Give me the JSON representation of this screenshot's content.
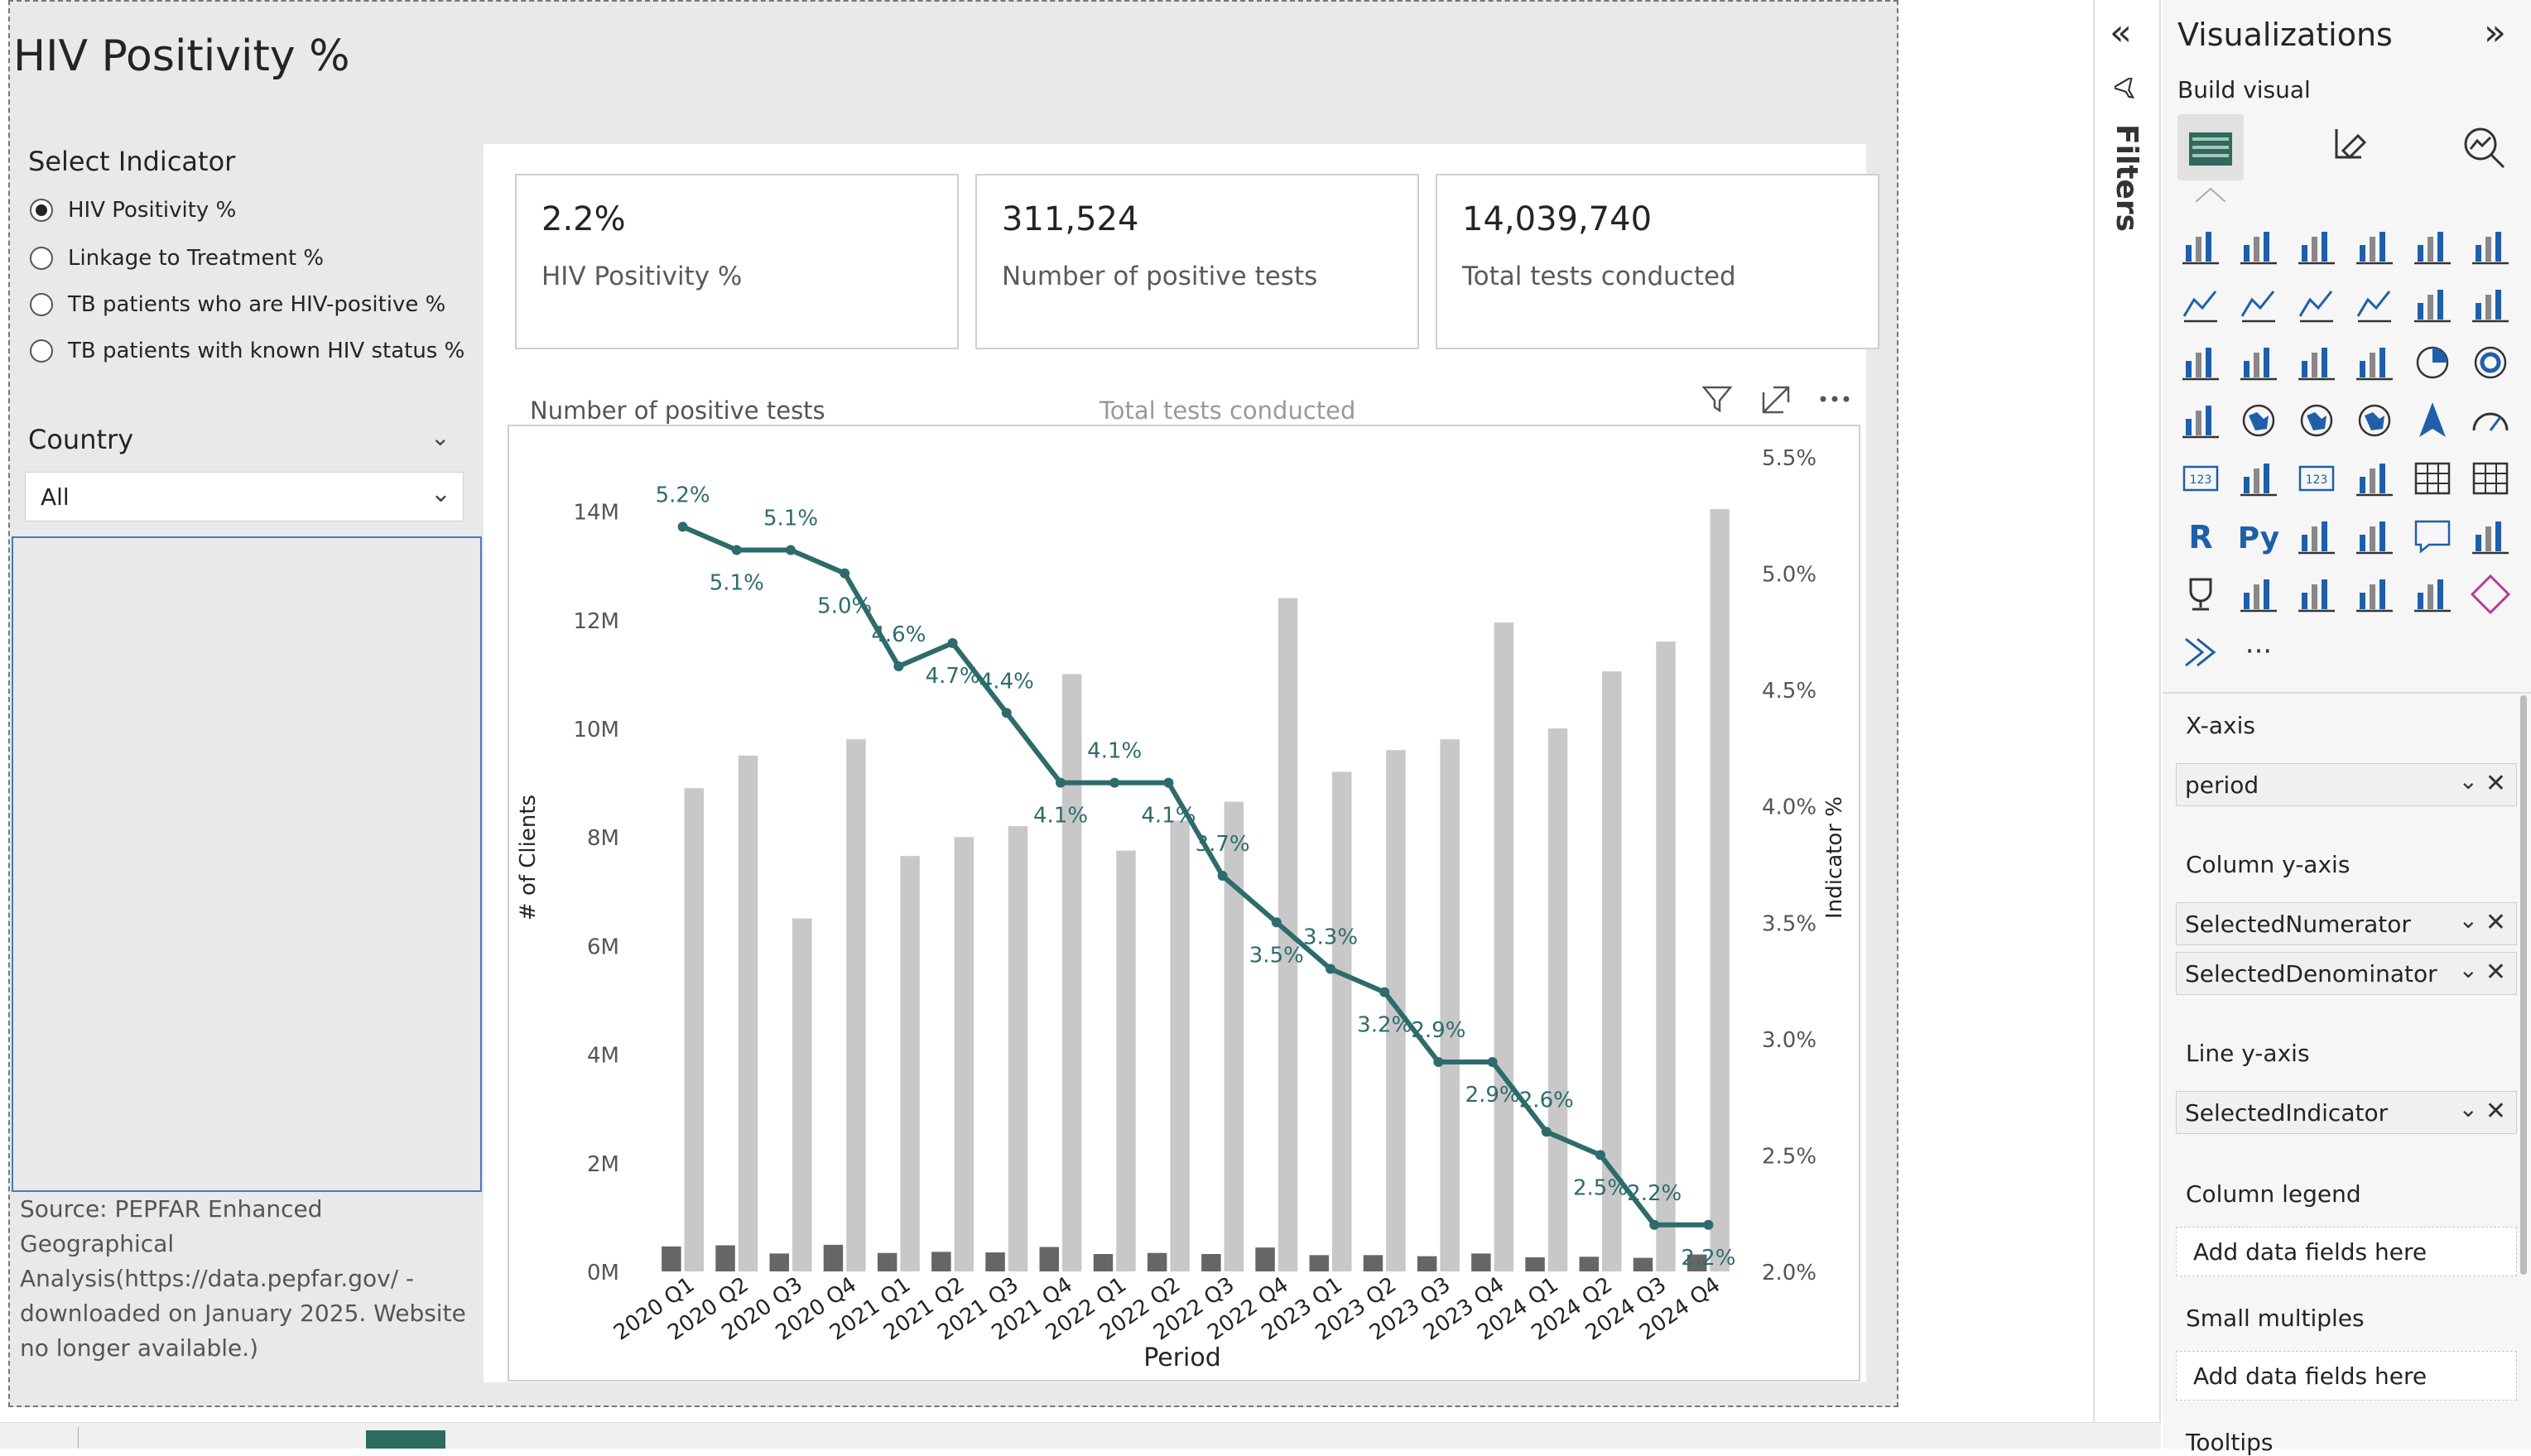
{
  "page_title": "HIV Positivity %",
  "select_indicator": {
    "title": "Select Indicator",
    "options": [
      {
        "label": "HIV Positivity %",
        "selected": true
      },
      {
        "label": "Linkage to Treatment %",
        "selected": false
      },
      {
        "label": "TB patients who are HIV-positive %",
        "selected": false
      },
      {
        "label": "TB patients with known HIV status %",
        "selected": false
      }
    ]
  },
  "country": {
    "label": "Country",
    "value": "All"
  },
  "source_text": "Source: PEPFAR Enhanced Geographical Analysis(https://data.pepfar.gov/ - downloaded on January 2025. Website no longer available.)",
  "cards": [
    {
      "value": "2.2%",
      "label": "HIV Positivity %"
    },
    {
      "value": "311,524",
      "label": "Number of positive tests"
    },
    {
      "value": "14,039,740",
      "label": "Total tests conducted"
    }
  ],
  "chart_data": {
    "type": "bar",
    "legend": [
      "Number of positive tests",
      "Total tests conducted"
    ],
    "legend_position": "top-left",
    "xlabel": "Period",
    "ylabel": "# of Clients",
    "y2label": "Indicator %",
    "categories": [
      "2020 Q1",
      "2020 Q2",
      "2020 Q3",
      "2020 Q4",
      "2021 Q1",
      "2021 Q2",
      "2021 Q3",
      "2021 Q4",
      "2022 Q1",
      "2022 Q2",
      "2022 Q3",
      "2022 Q4",
      "2023 Q1",
      "2023 Q2",
      "2023 Q3",
      "2023 Q4",
      "2024 Q1",
      "2024 Q2",
      "2024 Q3",
      "2024 Q4"
    ],
    "y_ticks": [
      "0M",
      "2M",
      "4M",
      "6M",
      "8M",
      "10M",
      "12M",
      "14M"
    ],
    "ylim": [
      0,
      15000000
    ],
    "y2_ticks": [
      "2.0%",
      "2.5%",
      "3.0%",
      "3.5%",
      "4.0%",
      "4.5%",
      "5.0%",
      "5.5%"
    ],
    "y2lim": [
      2.0,
      5.5
    ],
    "series": [
      {
        "name": "Number of positive tests",
        "color": "#666666",
        "values": [
          460000,
          480000,
          330000,
          490000,
          340000,
          360000,
          350000,
          450000,
          320000,
          340000,
          320000,
          440000,
          300000,
          300000,
          280000,
          330000,
          260000,
          270000,
          250000,
          311524
        ]
      },
      {
        "name": "Total tests conducted",
        "color": "#c8c8c8",
        "values": [
          8900000,
          9500000,
          6500000,
          9800000,
          7650000,
          8000000,
          8200000,
          11000000,
          7750000,
          8300000,
          8650000,
          12400000,
          9200000,
          9600000,
          9800000,
          11950000,
          10000000,
          11050000,
          11600000,
          14039740
        ]
      },
      {
        "name": "HIV Positivity %",
        "color": "#2e6b6b",
        "type": "line",
        "values": [
          5.2,
          5.1,
          5.1,
          5.0,
          4.6,
          4.7,
          4.4,
          4.1,
          4.1,
          4.1,
          3.7,
          3.5,
          3.3,
          3.2,
          2.9,
          2.9,
          2.6,
          2.5,
          2.2,
          2.2
        ]
      }
    ]
  },
  "filters_label": "Filters",
  "viz_pane": {
    "title": "Visualizations",
    "build_visual": "Build visual",
    "wells": [
      {
        "label": "X-axis",
        "fields": [
          "period"
        ]
      },
      {
        "label": "Column y-axis",
        "fields": [
          "SelectedNumerator",
          "SelectedDenominator"
        ]
      },
      {
        "label": "Line y-axis",
        "fields": [
          "SelectedIndicator"
        ]
      },
      {
        "label": "Column legend",
        "add": "Add data fields here"
      },
      {
        "label": "Small multiples",
        "add": "Add data fields here"
      },
      {
        "label": "Tooltips"
      }
    ],
    "icon_names": [
      "stacked-bar",
      "stacked-column",
      "clustered-bar",
      "clustered-column",
      "100-stacked-bar",
      "100-stacked-column",
      "line",
      "area",
      "stacked-area",
      "100-stacked-area",
      "line-clustered-column",
      "line-stacked-column",
      "ribbon",
      "waterfall",
      "funnel",
      "scatter",
      "pie",
      "donut",
      "treemap",
      "map",
      "filled-map",
      "shape-map",
      "azure-map",
      "gauge",
      "card",
      "multi-row-card",
      "kpi",
      "slicer",
      "table",
      "matrix",
      "r-visual",
      "python-visual",
      "key-influencers",
      "decomposition-tree",
      "qa",
      "paginated-report",
      "trophy",
      "smart-narrative",
      "power-apps",
      "power-automate",
      "custom-visual",
      "diamond",
      "arrow-visual",
      "more"
    ],
    "r_label": "R",
    "py_label": "Py",
    "more_label": "···"
  }
}
